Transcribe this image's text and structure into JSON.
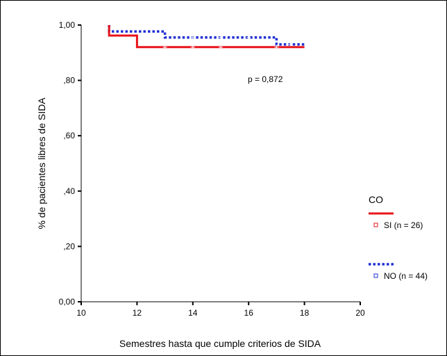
{
  "chart_data": {
    "type": "line",
    "chart_style": "kaplan-meier step curves with censor marks",
    "xlabel": "Semestres hasta que cumple criterios de SIDA",
    "ylabel": "% de pacientes libres de SIDA",
    "xlim": [
      10,
      20
    ],
    "ylim": [
      0,
      1
    ],
    "x_ticks": [
      10,
      12,
      14,
      16,
      18,
      20
    ],
    "x_tick_labels": [
      "10",
      "12",
      "14",
      "16",
      "18",
      "20"
    ],
    "y_ticks": [
      0,
      0.2,
      0.4,
      0.6,
      0.8,
      1.0
    ],
    "y_tick_labels": [
      "0,00",
      ",20",
      ",40",
      ",60",
      ",80",
      "1,00"
    ],
    "grid": false,
    "annotation": "p = 0,872",
    "legend": {
      "title": "CO",
      "position": "right",
      "entries": [
        "SI (n = 26)",
        "NO (n = 44)"
      ]
    },
    "series": [
      {
        "name": "SI (n = 26)",
        "color": "#e8141b",
        "line_style": "solid",
        "steps": [
          [
            11,
            1.0
          ],
          [
            11,
            0.962
          ],
          [
            12,
            0.962
          ],
          [
            12,
            0.92
          ],
          [
            18,
            0.92
          ]
        ],
        "censored_x": [
          13,
          14,
          15,
          17
        ]
      },
      {
        "name": "NO (n = 44)",
        "color": "#1f2fd4",
        "line_style": "dotted",
        "steps": [
          [
            11,
            1.0
          ],
          [
            11,
            0.977
          ],
          [
            13,
            0.977
          ],
          [
            13,
            0.955
          ],
          [
            17,
            0.955
          ],
          [
            17,
            0.93
          ],
          [
            18,
            0.93
          ]
        ],
        "censored_x": [
          14,
          15,
          16,
          17.5
        ]
      }
    ]
  }
}
